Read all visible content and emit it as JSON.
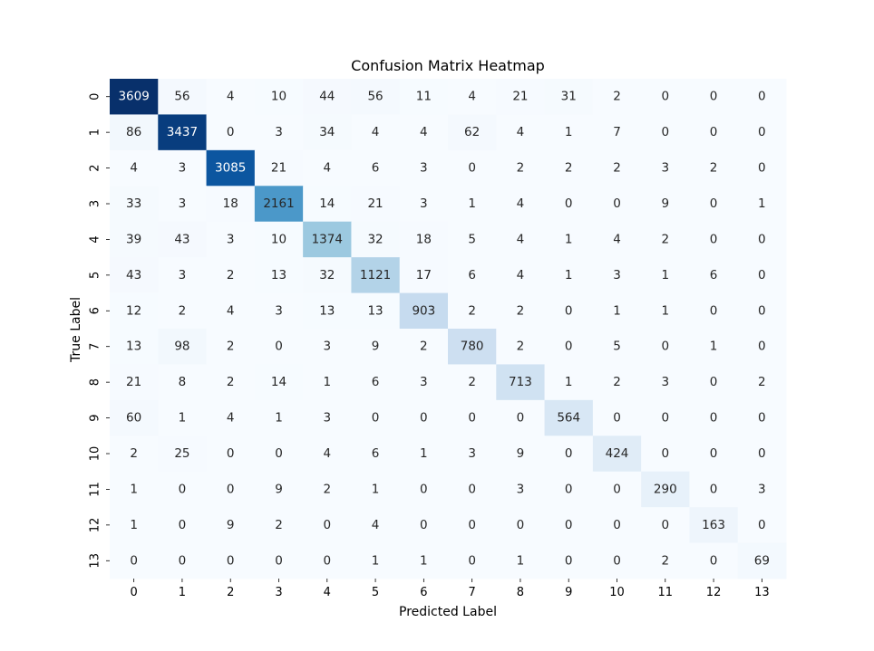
{
  "chart_data": {
    "type": "heatmap",
    "title": "Confusion Matrix Heatmap",
    "xlabel": "Predicted Label",
    "ylabel": "True Label",
    "x_categories": [
      "0",
      "1",
      "2",
      "3",
      "4",
      "5",
      "6",
      "7",
      "8",
      "9",
      "10",
      "11",
      "12",
      "13"
    ],
    "y_categories": [
      "0",
      "1",
      "2",
      "3",
      "4",
      "5",
      "6",
      "7",
      "8",
      "9",
      "10",
      "11",
      "12",
      "13"
    ],
    "colormap": "Blues",
    "color_range": [
      0,
      3609
    ],
    "colorbar": false,
    "annotations": true,
    "values": [
      [
        3609,
        56,
        4,
        10,
        44,
        56,
        11,
        4,
        21,
        31,
        2,
        0,
        0,
        0
      ],
      [
        86,
        3437,
        0,
        3,
        34,
        4,
        4,
        62,
        4,
        1,
        7,
        0,
        0,
        0
      ],
      [
        4,
        3,
        3085,
        21,
        4,
        6,
        3,
        0,
        2,
        2,
        2,
        3,
        2,
        0
      ],
      [
        33,
        3,
        18,
        2161,
        14,
        21,
        3,
        1,
        4,
        0,
        0,
        9,
        0,
        1
      ],
      [
        39,
        43,
        3,
        10,
        1374,
        32,
        18,
        5,
        4,
        1,
        4,
        2,
        0,
        0
      ],
      [
        43,
        3,
        2,
        13,
        32,
        1121,
        17,
        6,
        4,
        1,
        3,
        1,
        6,
        0
      ],
      [
        12,
        2,
        4,
        3,
        13,
        13,
        903,
        2,
        2,
        0,
        1,
        1,
        0,
        0
      ],
      [
        13,
        98,
        2,
        0,
        3,
        9,
        2,
        780,
        2,
        0,
        5,
        0,
        1,
        0
      ],
      [
        21,
        8,
        2,
        14,
        1,
        6,
        3,
        2,
        713,
        1,
        2,
        3,
        0,
        2
      ],
      [
        60,
        1,
        4,
        1,
        3,
        0,
        0,
        0,
        0,
        564,
        0,
        0,
        0,
        0
      ],
      [
        2,
        25,
        0,
        0,
        4,
        6,
        1,
        3,
        9,
        0,
        424,
        0,
        0,
        0
      ],
      [
        1,
        0,
        0,
        9,
        2,
        1,
        0,
        0,
        3,
        0,
        0,
        290,
        0,
        3
      ],
      [
        1,
        0,
        9,
        2,
        0,
        4,
        0,
        0,
        0,
        0,
        0,
        0,
        163,
        0
      ],
      [
        0,
        0,
        0,
        0,
        0,
        1,
        1,
        0,
        1,
        0,
        0,
        2,
        0,
        69
      ]
    ]
  }
}
